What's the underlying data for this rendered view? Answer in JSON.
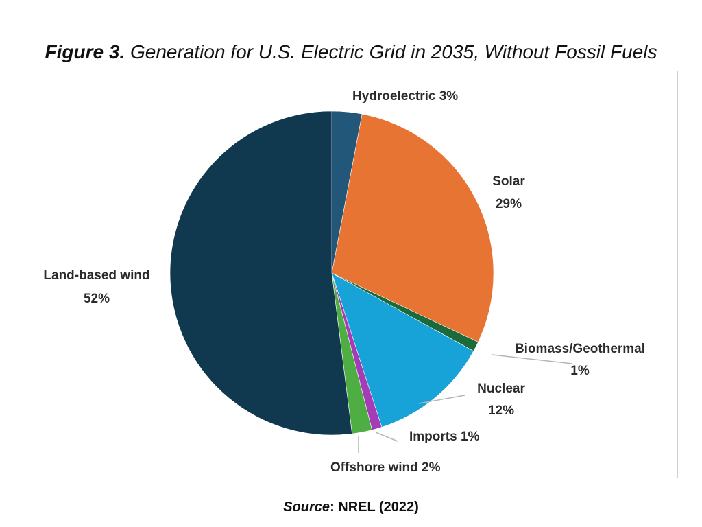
{
  "figure": {
    "label": "Figure 3.",
    "title": "Generation for U.S. Electric Grid in 2035, Without Fossil Fuels"
  },
  "source": {
    "label": "Source",
    "text": ": NREL (2022)"
  },
  "chart_data": {
    "type": "pie",
    "title": "Generation for U.S. Electric Grid in 2035, Without Fossil Fuels",
    "unit": "%",
    "start": "12 o'clock",
    "direction": "clockwise",
    "slices": [
      {
        "name": "Hydroelectric",
        "value": 3,
        "label": "3%",
        "color": "#22577a"
      },
      {
        "name": "Solar",
        "value": 29,
        "label": "29%",
        "color": "#e87433"
      },
      {
        "name": "Biomass/Geothermal",
        "value": 1,
        "label": "1%",
        "color": "#1c6a3c"
      },
      {
        "name": "Nuclear",
        "value": 12,
        "label": "12%",
        "color": "#17a2d8"
      },
      {
        "name": "Imports",
        "value": 1,
        "label": "1%",
        "color": "#a43cb7"
      },
      {
        "name": "Offshore wind",
        "value": 2,
        "label": "2%",
        "color": "#4fae43"
      },
      {
        "name": "Land-based wind",
        "value": 52,
        "label": "52%",
        "color": "#10394f"
      }
    ]
  }
}
